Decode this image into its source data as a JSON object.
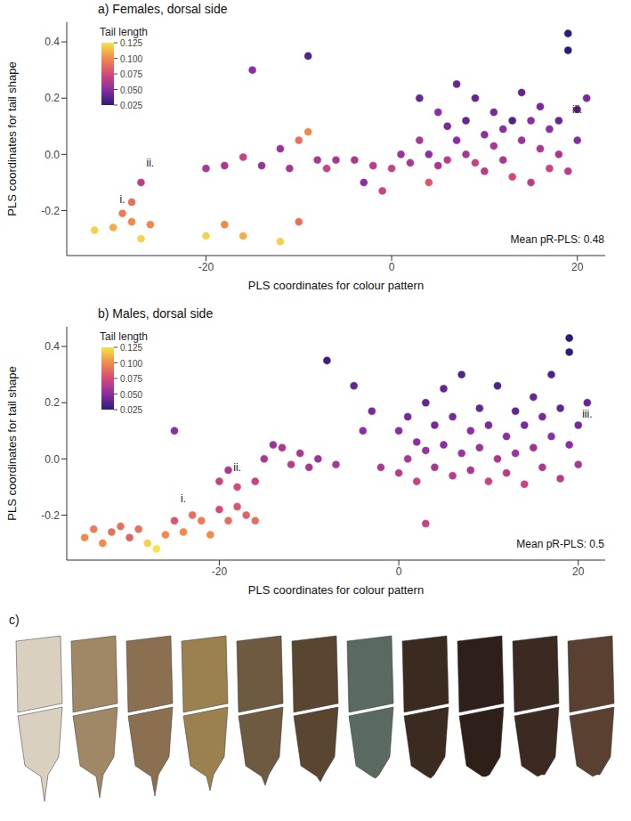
{
  "chart_data": [
    {
      "type": "scatter",
      "title": "a) Females, dorsal side",
      "x_label": "PLS coordinates for colour pattern",
      "y_label": "PLS coordinates for tail shape",
      "xlim": [
        -35,
        23
      ],
      "ylim": [
        -0.36,
        0.47
      ],
      "xticks": [
        -20,
        0,
        20
      ],
      "yticks": [
        -0.2,
        {
          "value": 0,
          "label": "0.0"
        },
        0.2,
        0.4
      ],
      "note": "Mean pR-PLS: 0.48",
      "annotations": [
        {
          "text": "i.",
          "x": -29,
          "y": -0.2
        },
        {
          "text": "ii.",
          "x": -26,
          "y": -0.07
        },
        {
          "text": "iii.",
          "x": 20,
          "y": 0.12
        }
      ],
      "colorbar": {
        "title": "Tail length",
        "range": [
          0.025,
          0.125
        ],
        "ticks": [
          0.025,
          {
            "value": 0.05,
            "label": "0.050"
          },
          0.075,
          {
            "value": 0.1,
            "label": "0.100"
          },
          0.125
        ],
        "colors": [
          "#2a1b78",
          "#8a2fa0",
          "#d6487a",
          "#f08a4b",
          "#f5e34a"
        ]
      },
      "points": [
        {
          "x": -32,
          "y": -0.27,
          "tail_length": 0.12
        },
        {
          "x": -30,
          "y": -0.26,
          "tail_length": 0.11
        },
        {
          "x": -29,
          "y": -0.21,
          "tail_length": 0.095
        },
        {
          "x": -28,
          "y": -0.24,
          "tail_length": 0.1
        },
        {
          "x": -27,
          "y": -0.3,
          "tail_length": 0.12
        },
        {
          "x": -26,
          "y": -0.25,
          "tail_length": 0.1
        },
        {
          "x": -28,
          "y": -0.17,
          "tail_length": 0.09
        },
        {
          "x": -27,
          "y": -0.1,
          "tail_length": 0.065
        },
        {
          "x": -20,
          "y": -0.29,
          "tail_length": 0.12
        },
        {
          "x": -18,
          "y": -0.25,
          "tail_length": 0.1
        },
        {
          "x": -16,
          "y": -0.29,
          "tail_length": 0.11
        },
        {
          "x": -12,
          "y": -0.31,
          "tail_length": 0.12
        },
        {
          "x": -10,
          "y": -0.24,
          "tail_length": 0.09
        },
        {
          "x": -20,
          "y": -0.05,
          "tail_length": 0.06
        },
        {
          "x": -18,
          "y": -0.04,
          "tail_length": 0.06
        },
        {
          "x": -16,
          "y": -0.01,
          "tail_length": 0.07
        },
        {
          "x": -14,
          "y": -0.04,
          "tail_length": 0.055
        },
        {
          "x": -15,
          "y": 0.3,
          "tail_length": 0.05
        },
        {
          "x": -12,
          "y": 0.02,
          "tail_length": 0.055
        },
        {
          "x": -11,
          "y": -0.05,
          "tail_length": 0.06
        },
        {
          "x": -10,
          "y": 0.05,
          "tail_length": 0.09
        },
        {
          "x": -9,
          "y": 0.08,
          "tail_length": 0.1
        },
        {
          "x": -8,
          "y": -0.02,
          "tail_length": 0.06
        },
        {
          "x": -7,
          "y": -0.05,
          "tail_length": 0.07
        },
        {
          "x": -6,
          "y": -0.02,
          "tail_length": 0.06
        },
        {
          "x": -4,
          "y": -0.02,
          "tail_length": 0.06
        },
        {
          "x": -3,
          "y": -0.1,
          "tail_length": 0.05
        },
        {
          "x": -2,
          "y": -0.04,
          "tail_length": 0.065
        },
        {
          "x": -9,
          "y": 0.35,
          "tail_length": 0.035
        },
        {
          "x": -1,
          "y": -0.13,
          "tail_length": 0.07
        },
        {
          "x": 0,
          "y": -0.05,
          "tail_length": 0.07
        },
        {
          "x": 1,
          "y": 0.0,
          "tail_length": 0.055
        },
        {
          "x": 2,
          "y": -0.03,
          "tail_length": 0.06
        },
        {
          "x": 3,
          "y": 0.2,
          "tail_length": 0.04
        },
        {
          "x": 3,
          "y": 0.05,
          "tail_length": 0.06
        },
        {
          "x": 4,
          "y": 0.0,
          "tail_length": 0.05
        },
        {
          "x": 4,
          "y": -0.1,
          "tail_length": 0.08
        },
        {
          "x": 5,
          "y": 0.15,
          "tail_length": 0.05
        },
        {
          "x": 5,
          "y": -0.04,
          "tail_length": 0.06
        },
        {
          "x": 6,
          "y": 0.1,
          "tail_length": 0.045
        },
        {
          "x": 6,
          "y": -0.02,
          "tail_length": 0.065
        },
        {
          "x": 7,
          "y": 0.05,
          "tail_length": 0.05
        },
        {
          "x": 7,
          "y": 0.25,
          "tail_length": 0.04
        },
        {
          "x": 8,
          "y": 0.0,
          "tail_length": 0.06
        },
        {
          "x": 8,
          "y": 0.12,
          "tail_length": 0.04
        },
        {
          "x": 9,
          "y": -0.03,
          "tail_length": 0.07
        },
        {
          "x": 9,
          "y": 0.2,
          "tail_length": 0.04
        },
        {
          "x": 10,
          "y": 0.07,
          "tail_length": 0.05
        },
        {
          "x": 10,
          "y": -0.06,
          "tail_length": 0.065
        },
        {
          "x": 11,
          "y": 0.03,
          "tail_length": 0.06
        },
        {
          "x": 11,
          "y": 0.15,
          "tail_length": 0.045
        },
        {
          "x": 12,
          "y": -0.02,
          "tail_length": 0.06
        },
        {
          "x": 12,
          "y": 0.09,
          "tail_length": 0.05
        },
        {
          "x": 13,
          "y": 0.12,
          "tail_length": 0.035
        },
        {
          "x": 13,
          "y": -0.08,
          "tail_length": 0.075
        },
        {
          "x": 14,
          "y": 0.05,
          "tail_length": 0.055
        },
        {
          "x": 14,
          "y": 0.22,
          "tail_length": 0.04
        },
        {
          "x": 15,
          "y": -0.1,
          "tail_length": 0.065
        },
        {
          "x": 15,
          "y": 0.12,
          "tail_length": 0.05
        },
        {
          "x": 16,
          "y": 0.02,
          "tail_length": 0.06
        },
        {
          "x": 16,
          "y": 0.17,
          "tail_length": 0.045
        },
        {
          "x": 17,
          "y": -0.05,
          "tail_length": 0.07
        },
        {
          "x": 17,
          "y": 0.09,
          "tail_length": 0.05
        },
        {
          "x": 18,
          "y": 0.12,
          "tail_length": 0.04
        },
        {
          "x": 18,
          "y": 0.0,
          "tail_length": 0.06
        },
        {
          "x": 19,
          "y": 0.43,
          "tail_length": 0.025
        },
        {
          "x": 19,
          "y": 0.37,
          "tail_length": 0.025
        },
        {
          "x": 20,
          "y": 0.16,
          "tail_length": 0.045
        },
        {
          "x": 20,
          "y": 0.05,
          "tail_length": 0.05
        },
        {
          "x": 21,
          "y": 0.2,
          "tail_length": 0.045
        },
        {
          "x": 19,
          "y": -0.06,
          "tail_length": 0.065
        }
      ]
    },
    {
      "type": "scatter",
      "title": "b) Males, dorsal side",
      "x_label": "PLS coordinates for colour pattern",
      "y_label": "PLS coordinates for tail shape",
      "xlim": [
        -37,
        23
      ],
      "ylim": [
        -0.36,
        0.47
      ],
      "xticks": [
        -20,
        0,
        20
      ],
      "yticks": [
        -0.2,
        {
          "value": 0,
          "label": "0.0"
        },
        0.2,
        0.4
      ],
      "note": "Mean pR-PLS: 0.5",
      "annotations": [
        {
          "text": "i.",
          "x": -24,
          "y": -0.18
        },
        {
          "text": "ii.",
          "x": -18,
          "y": -0.07
        },
        {
          "text": "iii.",
          "x": 21,
          "y": 0.12
        }
      ],
      "colorbar": {
        "title": "Tail length",
        "range": [
          0.025,
          0.125
        ],
        "ticks": [
          0.025,
          {
            "value": 0.05,
            "label": "0.050"
          },
          0.075,
          {
            "value": 0.1,
            "label": "0.100"
          },
          0.125
        ],
        "colors": [
          "#2a1b78",
          "#8a2fa0",
          "#d6487a",
          "#f08a4b",
          "#f5e34a"
        ]
      },
      "points": [
        {
          "x": -35,
          "y": -0.28,
          "tail_length": 0.1
        },
        {
          "x": -34,
          "y": -0.25,
          "tail_length": 0.095
        },
        {
          "x": -33,
          "y": -0.3,
          "tail_length": 0.1
        },
        {
          "x": -32,
          "y": -0.26,
          "tail_length": 0.09
        },
        {
          "x": -31,
          "y": -0.24,
          "tail_length": 0.09
        },
        {
          "x": -30,
          "y": -0.28,
          "tail_length": 0.085
        },
        {
          "x": -29,
          "y": -0.25,
          "tail_length": 0.09
        },
        {
          "x": -28,
          "y": -0.3,
          "tail_length": 0.12
        },
        {
          "x": -27,
          "y": -0.32,
          "tail_length": 0.125
        },
        {
          "x": -26,
          "y": -0.27,
          "tail_length": 0.1
        },
        {
          "x": -25,
          "y": -0.22,
          "tail_length": 0.08
        },
        {
          "x": -24,
          "y": -0.26,
          "tail_length": 0.1
        },
        {
          "x": -23,
          "y": -0.2,
          "tail_length": 0.09
        },
        {
          "x": -22,
          "y": -0.22,
          "tail_length": 0.095
        },
        {
          "x": -21,
          "y": -0.27,
          "tail_length": 0.1
        },
        {
          "x": -20,
          "y": -0.18,
          "tail_length": 0.075
        },
        {
          "x": -19,
          "y": -0.22,
          "tail_length": 0.09
        },
        {
          "x": -18,
          "y": -0.17,
          "tail_length": 0.08
        },
        {
          "x": -17,
          "y": -0.2,
          "tail_length": 0.085
        },
        {
          "x": -16,
          "y": -0.22,
          "tail_length": 0.09
        },
        {
          "x": -20,
          "y": -0.08,
          "tail_length": 0.07
        },
        {
          "x": -19,
          "y": -0.04,
          "tail_length": 0.06
        },
        {
          "x": -18,
          "y": -0.1,
          "tail_length": 0.075
        },
        {
          "x": -16,
          "y": -0.08,
          "tail_length": 0.07
        },
        {
          "x": -25,
          "y": 0.1,
          "tail_length": 0.05
        },
        {
          "x": -15,
          "y": 0.0,
          "tail_length": 0.06
        },
        {
          "x": -14,
          "y": 0.05,
          "tail_length": 0.055
        },
        {
          "x": -13,
          "y": 0.04,
          "tail_length": 0.06
        },
        {
          "x": -12,
          "y": -0.02,
          "tail_length": 0.065
        },
        {
          "x": -11,
          "y": 0.02,
          "tail_length": 0.06
        },
        {
          "x": -10,
          "y": -0.03,
          "tail_length": 0.06
        },
        {
          "x": -9,
          "y": 0.0,
          "tail_length": 0.055
        },
        {
          "x": -8,
          "y": 0.35,
          "tail_length": 0.03
        },
        {
          "x": -7,
          "y": -0.02,
          "tail_length": 0.06
        },
        {
          "x": -5,
          "y": 0.26,
          "tail_length": 0.04
        },
        {
          "x": -4,
          "y": 0.1,
          "tail_length": 0.05
        },
        {
          "x": -3,
          "y": 0.17,
          "tail_length": 0.045
        },
        {
          "x": -2,
          "y": -0.03,
          "tail_length": 0.06
        },
        {
          "x": 3,
          "y": -0.23,
          "tail_length": 0.07
        },
        {
          "x": 0,
          "y": 0.1,
          "tail_length": 0.05
        },
        {
          "x": 0,
          "y": -0.05,
          "tail_length": 0.065
        },
        {
          "x": 1,
          "y": 0.15,
          "tail_length": 0.045
        },
        {
          "x": 1,
          "y": 0.0,
          "tail_length": 0.06
        },
        {
          "x": 2,
          "y": 0.06,
          "tail_length": 0.05
        },
        {
          "x": 2,
          "y": -0.08,
          "tail_length": 0.07
        },
        {
          "x": 3,
          "y": 0.2,
          "tail_length": 0.04
        },
        {
          "x": 3,
          "y": 0.03,
          "tail_length": 0.055
        },
        {
          "x": 4,
          "y": -0.03,
          "tail_length": 0.06
        },
        {
          "x": 4,
          "y": 0.12,
          "tail_length": 0.045
        },
        {
          "x": 5,
          "y": 0.25,
          "tail_length": 0.04
        },
        {
          "x": 5,
          "y": 0.05,
          "tail_length": 0.05
        },
        {
          "x": 6,
          "y": -0.06,
          "tail_length": 0.065
        },
        {
          "x": 6,
          "y": 0.15,
          "tail_length": 0.045
        },
        {
          "x": 7,
          "y": 0.02,
          "tail_length": 0.055
        },
        {
          "x": 7,
          "y": 0.3,
          "tail_length": 0.035
        },
        {
          "x": 8,
          "y": 0.1,
          "tail_length": 0.05
        },
        {
          "x": 8,
          "y": -0.04,
          "tail_length": 0.06
        },
        {
          "x": 9,
          "y": 0.18,
          "tail_length": 0.04
        },
        {
          "x": 9,
          "y": 0.04,
          "tail_length": 0.055
        },
        {
          "x": 10,
          "y": -0.08,
          "tail_length": 0.07
        },
        {
          "x": 10,
          "y": 0.12,
          "tail_length": 0.045
        },
        {
          "x": 11,
          "y": 0.26,
          "tail_length": 0.035
        },
        {
          "x": 11,
          "y": 0.0,
          "tail_length": 0.06
        },
        {
          "x": 12,
          "y": 0.08,
          "tail_length": 0.05
        },
        {
          "x": 12,
          "y": -0.05,
          "tail_length": 0.065
        },
        {
          "x": 13,
          "y": 0.17,
          "tail_length": 0.04
        },
        {
          "x": 13,
          "y": 0.02,
          "tail_length": 0.055
        },
        {
          "x": 14,
          "y": -0.09,
          "tail_length": 0.07
        },
        {
          "x": 14,
          "y": 0.12,
          "tail_length": 0.045
        },
        {
          "x": 15,
          "y": 0.22,
          "tail_length": 0.04
        },
        {
          "x": 15,
          "y": 0.04,
          "tail_length": 0.055
        },
        {
          "x": 16,
          "y": -0.03,
          "tail_length": 0.06
        },
        {
          "x": 16,
          "y": 0.15,
          "tail_length": 0.045
        },
        {
          "x": 17,
          "y": 0.3,
          "tail_length": 0.035
        },
        {
          "x": 17,
          "y": 0.08,
          "tail_length": 0.05
        },
        {
          "x": 18,
          "y": -0.07,
          "tail_length": 0.065
        },
        {
          "x": 18,
          "y": 0.18,
          "tail_length": 0.04
        },
        {
          "x": 19,
          "y": 0.43,
          "tail_length": 0.025
        },
        {
          "x": 19,
          "y": 0.38,
          "tail_length": 0.025
        },
        {
          "x": 19,
          "y": 0.05,
          "tail_length": 0.05
        },
        {
          "x": 20,
          "y": 0.12,
          "tail_length": 0.045
        },
        {
          "x": 20,
          "y": -0.02,
          "tail_length": 0.06
        },
        {
          "x": 21,
          "y": 0.2,
          "tail_length": 0.04
        }
      ]
    }
  ],
  "panel_c": {
    "label": "c)"
  }
}
